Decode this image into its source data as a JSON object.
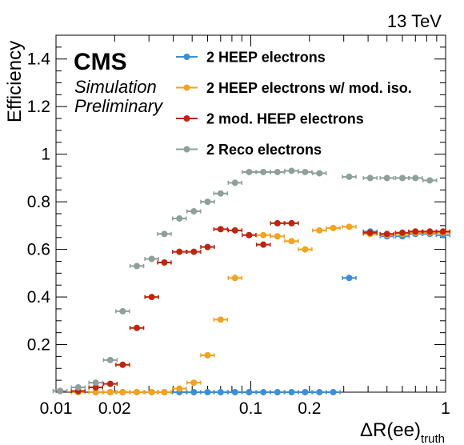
{
  "header": {
    "energy": "13 TeV",
    "experiment": "CMS",
    "status_line1": "Simulation",
    "status_line2": "Preliminary"
  },
  "chart_data": {
    "type": "scatter",
    "title": "",
    "xlabel": "ΔR(ee)",
    "xlabel_subscript": "truth",
    "ylabel": "Efficiency",
    "xscale": "log",
    "xlim": [
      0.01,
      1
    ],
    "ylim": [
      0,
      1.5
    ],
    "x_ticks": [
      {
        "value": 0.01,
        "label": "0.01"
      },
      {
        "value": 0.02,
        "label": "0.02"
      },
      {
        "value": 0.1,
        "label": "0.1"
      },
      {
        "value": 0.2,
        "label": "0.2"
      },
      {
        "value": 1,
        "label": "1"
      }
    ],
    "y_ticks": [
      {
        "value": 0.2,
        "label": "0.2"
      },
      {
        "value": 0.4,
        "label": "0.4"
      },
      {
        "value": 0.6,
        "label": "0.6"
      },
      {
        "value": 0.8,
        "label": "0.8"
      },
      {
        "value": 1,
        "label": "1"
      },
      {
        "value": 1.2,
        "label": "1.2"
      },
      {
        "value": 1.4,
        "label": "1.4"
      }
    ],
    "legend_position": "top-center",
    "series": [
      {
        "name": "2 HEEP electrons",
        "color": "#3b8fd9",
        "points": [
          {
            "x": 0.013,
            "y": 0.0
          },
          {
            "x": 0.016,
            "y": 0.0
          },
          {
            "x": 0.019,
            "y": 0.0
          },
          {
            "x": 0.022,
            "y": 0.0
          },
          {
            "x": 0.026,
            "y": 0.0
          },
          {
            "x": 0.031,
            "y": 0.0
          },
          {
            "x": 0.036,
            "y": 0.0
          },
          {
            "x": 0.043,
            "y": 0.0
          },
          {
            "x": 0.051,
            "y": 0.0
          },
          {
            "x": 0.06,
            "y": 0.0
          },
          {
            "x": 0.07,
            "y": 0.0
          },
          {
            "x": 0.083,
            "y": 0.0
          },
          {
            "x": 0.098,
            "y": 0.0
          },
          {
            "x": 0.116,
            "y": 0.0
          },
          {
            "x": 0.137,
            "y": 0.0
          },
          {
            "x": 0.162,
            "y": 0.0
          },
          {
            "x": 0.19,
            "y": 0.0
          },
          {
            "x": 0.225,
            "y": 0.0
          },
          {
            "x": 0.265,
            "y": 0.0
          },
          {
            "x": 0.32,
            "y": 0.48
          },
          {
            "x": 0.41,
            "y": 0.675
          },
          {
            "x": 0.5,
            "y": 0.655
          },
          {
            "x": 0.6,
            "y": 0.655
          },
          {
            "x": 0.7,
            "y": 0.665
          },
          {
            "x": 0.83,
            "y": 0.665
          },
          {
            "x": 0.97,
            "y": 0.66
          }
        ]
      },
      {
        "name": "2 HEEP electrons w/ mod. iso.",
        "color": "#f5a21c",
        "points": [
          {
            "x": 0.013,
            "y": 0.0
          },
          {
            "x": 0.016,
            "y": 0.0
          },
          {
            "x": 0.019,
            "y": 0.0
          },
          {
            "x": 0.022,
            "y": 0.0
          },
          {
            "x": 0.026,
            "y": 0.0
          },
          {
            "x": 0.031,
            "y": 0.0
          },
          {
            "x": 0.036,
            "y": 0.0
          },
          {
            "x": 0.043,
            "y": 0.015
          },
          {
            "x": 0.051,
            "y": 0.04
          },
          {
            "x": 0.06,
            "y": 0.155
          },
          {
            "x": 0.07,
            "y": 0.305
          },
          {
            "x": 0.083,
            "y": 0.48
          },
          {
            "x": 0.116,
            "y": 0.66
          },
          {
            "x": 0.137,
            "y": 0.655
          },
          {
            "x": 0.162,
            "y": 0.635
          },
          {
            "x": 0.19,
            "y": 0.6
          },
          {
            "x": 0.225,
            "y": 0.68
          },
          {
            "x": 0.265,
            "y": 0.69
          },
          {
            "x": 0.32,
            "y": 0.695
          },
          {
            "x": 0.41,
            "y": 0.665
          },
          {
            "x": 0.5,
            "y": 0.66
          },
          {
            "x": 0.6,
            "y": 0.665
          },
          {
            "x": 0.7,
            "y": 0.67
          },
          {
            "x": 0.83,
            "y": 0.67
          },
          {
            "x": 0.97,
            "y": 0.67
          }
        ]
      },
      {
        "name": "2 mod. HEEP electrons",
        "color": "#c0240d",
        "points": [
          {
            "x": 0.0105,
            "y": 0.005
          },
          {
            "x": 0.013,
            "y": 0.005
          },
          {
            "x": 0.016,
            "y": 0.02
          },
          {
            "x": 0.019,
            "y": 0.035
          },
          {
            "x": 0.022,
            "y": 0.115
          },
          {
            "x": 0.026,
            "y": 0.27
          },
          {
            "x": 0.031,
            "y": 0.4
          },
          {
            "x": 0.036,
            "y": 0.545
          },
          {
            "x": 0.043,
            "y": 0.59
          },
          {
            "x": 0.051,
            "y": 0.59
          },
          {
            "x": 0.06,
            "y": 0.61
          },
          {
            "x": 0.07,
            "y": 0.685
          },
          {
            "x": 0.083,
            "y": 0.68
          },
          {
            "x": 0.098,
            "y": 0.66
          },
          {
            "x": 0.116,
            "y": 0.62
          },
          {
            "x": 0.137,
            "y": 0.71
          },
          {
            "x": 0.162,
            "y": 0.71
          },
          {
            "x": 0.41,
            "y": 0.67
          },
          {
            "x": 0.5,
            "y": 0.665
          },
          {
            "x": 0.6,
            "y": 0.67
          },
          {
            "x": 0.7,
            "y": 0.675
          },
          {
            "x": 0.83,
            "y": 0.675
          },
          {
            "x": 0.97,
            "y": 0.675
          }
        ]
      },
      {
        "name": "2 Reco electrons",
        "color": "#8fa09c",
        "points": [
          {
            "x": 0.0105,
            "y": 0.005
          },
          {
            "x": 0.013,
            "y": 0.02
          },
          {
            "x": 0.016,
            "y": 0.04
          },
          {
            "x": 0.019,
            "y": 0.135
          },
          {
            "x": 0.022,
            "y": 0.34
          },
          {
            "x": 0.026,
            "y": 0.53
          },
          {
            "x": 0.031,
            "y": 0.56
          },
          {
            "x": 0.036,
            "y": 0.665
          },
          {
            "x": 0.043,
            "y": 0.73
          },
          {
            "x": 0.051,
            "y": 0.76
          },
          {
            "x": 0.06,
            "y": 0.8
          },
          {
            "x": 0.07,
            "y": 0.835
          },
          {
            "x": 0.083,
            "y": 0.88
          },
          {
            "x": 0.098,
            "y": 0.925
          },
          {
            "x": 0.116,
            "y": 0.925
          },
          {
            "x": 0.137,
            "y": 0.925
          },
          {
            "x": 0.162,
            "y": 0.93
          },
          {
            "x": 0.19,
            "y": 0.925
          },
          {
            "x": 0.225,
            "y": 0.92
          },
          {
            "x": 0.32,
            "y": 0.905
          },
          {
            "x": 0.41,
            "y": 0.9
          },
          {
            "x": 0.5,
            "y": 0.9
          },
          {
            "x": 0.6,
            "y": 0.9
          },
          {
            "x": 0.7,
            "y": 0.9
          },
          {
            "x": 0.83,
            "y": 0.89
          }
        ]
      }
    ]
  }
}
